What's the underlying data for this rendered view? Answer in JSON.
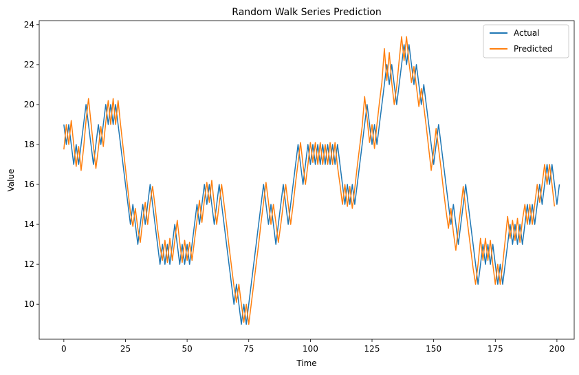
{
  "chart_data": {
    "type": "line",
    "title": "Random Walk Series Prediction",
    "xlabel": "Time",
    "ylabel": "Value",
    "xlim": [
      -10,
      207
    ],
    "ylim": [
      8.25,
      24.2
    ],
    "x_ticks": [
      0,
      25,
      50,
      75,
      100,
      125,
      150,
      175,
      200
    ],
    "y_ticks": [
      10,
      12,
      14,
      16,
      18,
      20,
      22,
      24
    ],
    "grid": false,
    "legend_position": "top-right",
    "series": [
      {
        "name": "Actual",
        "color": "#1f77b4",
        "x_start": 0,
        "values": [
          19,
          18,
          19,
          18,
          17,
          18,
          17,
          18,
          19,
          20,
          19,
          18,
          17,
          18,
          19,
          18,
          19,
          20,
          19,
          20,
          19,
          20,
          19,
          18,
          17,
          16,
          15,
          14,
          15,
          14,
          13,
          14,
          15,
          14,
          15,
          16,
          15,
          14,
          13,
          12,
          13,
          12,
          13,
          12,
          13,
          14,
          13,
          12,
          13,
          12,
          13,
          12,
          13,
          14,
          15,
          14,
          15,
          16,
          15,
          16,
          15,
          14,
          15,
          16,
          15,
          14,
          13,
          12,
          11,
          10,
          11,
          10,
          9,
          10,
          9,
          10,
          11,
          12,
          13,
          14,
          15,
          16,
          15,
          14,
          15,
          14,
          13,
          14,
          15,
          16,
          15,
          14,
          15,
          16,
          17,
          18,
          17,
          16,
          17,
          18,
          17,
          18,
          17,
          18,
          17,
          18,
          17,
          18,
          17,
          18,
          17,
          18,
          17,
          16,
          15,
          16,
          15,
          16,
          15,
          16,
          17,
          18,
          19,
          20,
          19,
          18,
          19,
          18,
          19,
          20,
          21,
          22,
          21,
          22,
          21,
          20,
          21,
          22,
          23,
          22,
          23,
          22,
          21,
          22,
          21,
          20,
          21,
          20,
          19,
          18,
          17,
          18,
          19,
          18,
          17,
          16,
          15,
          14,
          15,
          14,
          13,
          14,
          15,
          16,
          15,
          14,
          13,
          12,
          11,
          12,
          13,
          12,
          13,
          12,
          13,
          12,
          11,
          12,
          11,
          12,
          13,
          14,
          13,
          14,
          13,
          14,
          13,
          14,
          15,
          14,
          15,
          14,
          15,
          16,
          15,
          16,
          17,
          16,
          17,
          16,
          15,
          16
        ]
      },
      {
        "name": "Predicted",
        "color": "#ff7f0e",
        "x_start": 0,
        "values": [
          17.75,
          19.0,
          18.0,
          19.2,
          18.0,
          16.9,
          17.9,
          16.7,
          17.8,
          19.2,
          20.3,
          19.1,
          17.9,
          16.8,
          17.8,
          18.9,
          17.9,
          19.1,
          20.2,
          19.0,
          20.3,
          19.0,
          20.2,
          19.0,
          17.9,
          16.8,
          15.7,
          14.6,
          13.9,
          14.8,
          13.8,
          13.1,
          14.2,
          15.1,
          14.0,
          15.1,
          15.9,
          14.9,
          13.8,
          12.9,
          12.2,
          13.2,
          12.1,
          13.3,
          12.2,
          13.2,
          14.2,
          13.1,
          12.1,
          13.2,
          12.2,
          13.1,
          12.2,
          13.2,
          14.2,
          15.2,
          14.1,
          15.2,
          16.1,
          15.1,
          16.2,
          15.0,
          14.0,
          15.0,
          16.0,
          15.0,
          14.0,
          12.9,
          11.9,
          10.9,
          10.1,
          11.0,
          10.0,
          9.1,
          10.0,
          9.0,
          10.0,
          11.0,
          12.0,
          13.0,
          14.1,
          15.1,
          16.1,
          15.1,
          14.0,
          15.0,
          14.1,
          13.1,
          14.0,
          15.0,
          16.0,
          15.0,
          14.0,
          15.0,
          16.1,
          17.1,
          18.1,
          17.0,
          16.0,
          17.0,
          18.1,
          17.1,
          18.1,
          17.0,
          18.1,
          17.0,
          18.0,
          17.0,
          18.1,
          17.0,
          18.1,
          16.9,
          16.0,
          15.0,
          16.0,
          14.9,
          15.9,
          14.8,
          15.8,
          16.9,
          17.9,
          18.9,
          20.4,
          19.3,
          18.1,
          19.0,
          17.8,
          19.0,
          20.1,
          21.1,
          22.8,
          21.2,
          22.6,
          21.1,
          20.0,
          20.9,
          22.2,
          23.4,
          22.2,
          23.4,
          22.1,
          21.1,
          21.9,
          20.9,
          19.9,
          20.8,
          19.9,
          18.9,
          17.8,
          16.7,
          17.7,
          18.8,
          17.8,
          16.8,
          15.7,
          14.7,
          13.8,
          14.8,
          13.6,
          12.7,
          13.8,
          14.8,
          15.9,
          14.8,
          13.8,
          12.8,
          11.8,
          11.0,
          12.0,
          13.3,
          12.2,
          13.3,
          12.2,
          13.2,
          12.0,
          11.0,
          12.0,
          11.0,
          12.0,
          13.2,
          14.4,
          13.3,
          14.2,
          13.2,
          14.3,
          13.1,
          14.2,
          15.0,
          14.0,
          15.0,
          14.0,
          15.0,
          16.0,
          15.1,
          16.0,
          17.0,
          16.0,
          17.0,
          16.0,
          14.9
        ]
      }
    ]
  }
}
